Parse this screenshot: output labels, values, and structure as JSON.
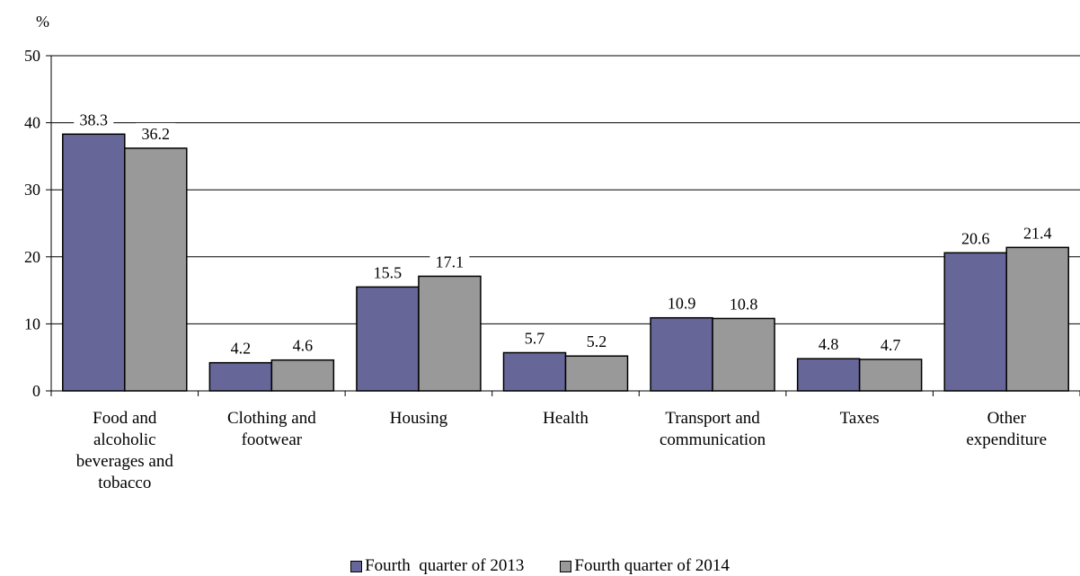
{
  "chart_data": {
    "type": "bar",
    "unit_label": "%",
    "categories": [
      [
        "Food and",
        "alcoholic",
        "beverages and",
        "tobacco"
      ],
      [
        "Clothing and",
        "footwear"
      ],
      [
        "Housing"
      ],
      [
        "Health"
      ],
      [
        "Transport and",
        "communication"
      ],
      [
        "Taxes"
      ],
      [
        "Other",
        "expenditure"
      ]
    ],
    "series": [
      {
        "name": "Fourth  quarter of 2013",
        "color": "#666699",
        "values": [
          38.3,
          4.2,
          15.5,
          5.7,
          10.9,
          4.8,
          20.6
        ]
      },
      {
        "name": "Fourth quarter of 2014",
        "color": "#999999",
        "values": [
          36.2,
          4.6,
          17.1,
          5.2,
          10.8,
          4.7,
          21.4
        ]
      }
    ],
    "ylim": [
      0,
      50
    ],
    "yticks": [
      0,
      10,
      20,
      30,
      40,
      50
    ],
    "grid": true,
    "legend_position": "bottom"
  }
}
